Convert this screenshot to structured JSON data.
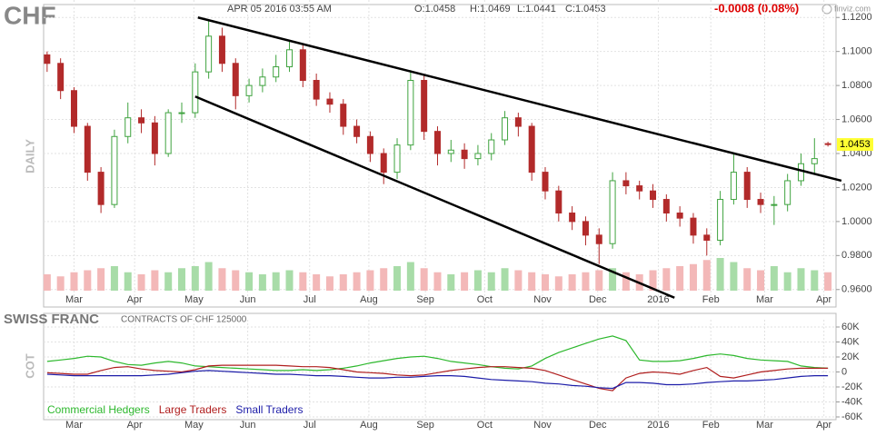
{
  "chart_data": [
    {
      "type": "candlestick",
      "title": "CHF",
      "subtitle": "APR 05 2016 03:55 AM",
      "ohlc_text": [
        "O:1.0458",
        "H:1.0469",
        "L:1.0441",
        "C:1.0453"
      ],
      "change_text": "-0.0008 (0.08%)",
      "branding": "finviz.com",
      "ylabel": "DAILY",
      "x": [
        0,
        1,
        2,
        3,
        4,
        5,
        6,
        7,
        8,
        9,
        10,
        11,
        12,
        13,
        14,
        15,
        16,
        17,
        18,
        19,
        20,
        21,
        22,
        23,
        24,
        25,
        26,
        27,
        28,
        29,
        30,
        31,
        32,
        33,
        34,
        35,
        36,
        37,
        38,
        39,
        40,
        41,
        42,
        43,
        44,
        45,
        46,
        47,
        48,
        49,
        50,
        51,
        52,
        53,
        54,
        55,
        56,
        57,
        58
      ],
      "open": [
        1.098,
        1.093,
        1.077,
        1.056,
        1.029,
        1.01,
        1.05,
        1.061,
        1.058,
        1.04,
        1.064,
        1.064,
        1.088,
        1.109,
        1.093,
        1.074,
        1.08,
        1.085,
        1.091,
        1.101,
        1.083,
        1.072,
        1.069,
        1.056,
        1.05,
        1.04,
        1.029,
        1.045,
        1.083,
        1.053,
        1.04,
        1.042,
        1.037,
        1.04,
        1.048,
        1.061,
        1.056,
        1.029,
        1.018,
        1.005,
        1.0,
        0.992,
        0.987,
        1.024,
        1.021,
        1.018,
        1.013,
        1.005,
        1.002,
        0.992,
        0.989,
        1.013,
        1.029,
        1.013,
        1.01,
        1.01,
        1.024,
        1.034,
        1.0458
      ],
      "high": [
        1.1,
        1.096,
        1.079,
        1.058,
        1.032,
        1.054,
        1.07,
        1.066,
        1.062,
        1.066,
        1.07,
        1.093,
        1.118,
        1.114,
        1.096,
        1.084,
        1.09,
        1.098,
        1.106,
        1.104,
        1.087,
        1.076,
        1.072,
        1.06,
        1.053,
        1.043,
        1.049,
        1.089,
        1.086,
        1.056,
        1.048,
        1.046,
        1.045,
        1.052,
        1.065,
        1.064,
        1.058,
        1.032,
        1.021,
        1.009,
        1.003,
        0.996,
        1.029,
        1.029,
        1.024,
        1.022,
        1.016,
        1.009,
        1.005,
        0.996,
        1.018,
        1.04,
        1.032,
        1.017,
        1.015,
        1.028,
        1.04,
        1.049,
        1.0469
      ],
      "low": [
        1.088,
        1.072,
        1.052,
        1.024,
        1.005,
        1.008,
        1.046,
        1.052,
        1.033,
        1.038,
        1.058,
        1.061,
        1.084,
        1.088,
        1.066,
        1.07,
        1.076,
        1.082,
        1.088,
        1.079,
        1.068,
        1.064,
        1.051,
        1.046,
        1.035,
        1.022,
        1.025,
        1.042,
        1.048,
        1.033,
        1.035,
        1.031,
        1.033,
        1.036,
        1.045,
        1.05,
        1.024,
        1.013,
        1.0,
        0.995,
        0.986,
        0.975,
        0.984,
        1.016,
        1.013,
        1.008,
        1.0,
        0.997,
        0.987,
        0.98,
        0.986,
        1.01,
        1.008,
        1.005,
        0.998,
        1.006,
        1.021,
        1.028,
        1.0441
      ],
      "close": [
        1.093,
        1.077,
        1.056,
        1.029,
        1.01,
        1.05,
        1.061,
        1.058,
        1.04,
        1.064,
        1.064,
        1.088,
        1.109,
        1.093,
        1.074,
        1.08,
        1.085,
        1.091,
        1.101,
        1.083,
        1.072,
        1.069,
        1.056,
        1.05,
        1.04,
        1.029,
        1.045,
        1.083,
        1.053,
        1.04,
        1.042,
        1.037,
        1.04,
        1.048,
        1.061,
        1.056,
        1.029,
        1.018,
        1.005,
        1.0,
        0.992,
        0.987,
        1.024,
        1.021,
        1.018,
        1.013,
        1.005,
        1.002,
        0.992,
        0.989,
        1.013,
        1.029,
        1.013,
        1.01,
        1.01,
        1.024,
        1.034,
        1.037,
        1.0453
      ],
      "volume": [
        40,
        35,
        45,
        50,
        55,
        60,
        45,
        40,
        50,
        45,
        55,
        60,
        70,
        55,
        50,
        45,
        40,
        45,
        50,
        45,
        40,
        35,
        40,
        45,
        50,
        55,
        60,
        70,
        55,
        45,
        40,
        45,
        50,
        45,
        55,
        50,
        45,
        40,
        35,
        40,
        45,
        50,
        55,
        45,
        40,
        50,
        55,
        60,
        65,
        75,
        80,
        70,
        55,
        50,
        60,
        45,
        55,
        50,
        45
      ],
      "up_color": "#3fa33f",
      "down_color": "#b22a2a",
      "up_volume_color": "#a8dca8",
      "down_volume_color": "#f3b8b8",
      "trendlines": [
        {
          "x": [
            11.2,
            59.0
          ],
          "y": [
            1.12,
            1.024
          ]
        },
        {
          "x": [
            11.0,
            46.6
          ],
          "y": [
            1.0735,
            0.9552
          ]
        }
      ],
      "trendline_color": "#000000",
      "xlim": [
        -0.8,
        58.6
      ],
      "xticks": [
        {
          "value": 2,
          "label": "Mar"
        },
        {
          "value": 6.5,
          "label": "Apr"
        },
        {
          "value": 10.9,
          "label": "May"
        },
        {
          "value": 14.9,
          "label": "Jun"
        },
        {
          "value": 19.5,
          "label": "Jul"
        },
        {
          "value": 23.9,
          "label": "Aug"
        },
        {
          "value": 28.1,
          "label": "Sep"
        },
        {
          "value": 32.5,
          "label": "Oct"
        },
        {
          "value": 36.8,
          "label": "Nov"
        },
        {
          "value": 40.9,
          "label": "Dec"
        },
        {
          "value": 45.4,
          "label": "2016"
        },
        {
          "value": 49.3,
          "label": "Feb"
        },
        {
          "value": 53.3,
          "label": "Mar"
        },
        {
          "value": 57.7,
          "label": "Apr"
        }
      ],
      "ylim": [
        0.954,
        1.126
      ],
      "yticks": [
        {
          "value": 0.96,
          "label": "0.9600"
        },
        {
          "value": 0.98,
          "label": "0.9800"
        },
        {
          "value": 1.0,
          "label": "1.0000"
        },
        {
          "value": 1.02,
          "label": "1.0200"
        },
        {
          "value": 1.04,
          "label": "1.0400"
        },
        {
          "value": 1.06,
          "label": "1.0600"
        },
        {
          "value": 1.08,
          "label": "1.0800"
        },
        {
          "value": 1.1,
          "label": "1.1000"
        },
        {
          "value": 1.12,
          "label": "1.1200"
        }
      ],
      "grid": true
    },
    {
      "type": "line",
      "title": "SWISS FRANC",
      "subtitle": "CONTRACTS OF CHF 125000",
      "ylabel": "COT",
      "x": [
        0,
        1,
        2,
        3,
        4,
        5,
        6,
        7,
        8,
        9,
        10,
        11,
        12,
        13,
        14,
        15,
        16,
        17,
        18,
        19,
        20,
        21,
        22,
        23,
        24,
        25,
        26,
        27,
        28,
        29,
        30,
        31,
        32,
        33,
        34,
        35,
        36,
        37,
        38,
        39,
        40,
        41,
        42,
        43,
        44,
        45,
        46,
        47,
        48,
        49,
        50,
        51,
        52,
        53,
        54,
        55,
        56,
        57,
        58
      ],
      "series": [
        {
          "name": "Commercial Hedgers",
          "color": "#2db82d",
          "values": [
            14000,
            16000,
            18000,
            21000,
            20000,
            14000,
            10000,
            9000,
            12000,
            14000,
            12000,
            8000,
            7000,
            6000,
            5000,
            4000,
            3000,
            2000,
            2000,
            3000,
            2000,
            3000,
            5000,
            8000,
            12000,
            15000,
            18000,
            20000,
            21000,
            18000,
            14000,
            12000,
            10000,
            7000,
            5000,
            4000,
            8000,
            18000,
            26000,
            32000,
            38000,
            44000,
            48000,
            42000,
            16000,
            14000,
            14000,
            15000,
            18000,
            22000,
            24000,
            22000,
            18000,
            16000,
            15000,
            14000,
            8000,
            6000,
            5000
          ]
        },
        {
          "name": "Large Traders",
          "color": "#b01e1e",
          "values": [
            -1000,
            -2000,
            -3000,
            -3000,
            2000,
            6000,
            7000,
            4000,
            2000,
            1000,
            0,
            3000,
            8000,
            9000,
            9000,
            9000,
            9000,
            9000,
            8000,
            7000,
            7000,
            6000,
            3000,
            0,
            -1000,
            -2000,
            -4000,
            -5000,
            -4000,
            -1000,
            2000,
            4000,
            6000,
            7000,
            7000,
            6000,
            5000,
            2000,
            -4000,
            -10000,
            -16000,
            -22000,
            -25000,
            -8000,
            -2000,
            0,
            -1000,
            -3000,
            2000,
            6000,
            -6000,
            -8000,
            -4000,
            0,
            2000,
            4000,
            5000,
            5000,
            5000
          ]
        },
        {
          "name": "Small Traders",
          "color": "#1c1ca8",
          "values": [
            -3000,
            -4000,
            -5000,
            -5000,
            -5000,
            -5000,
            -5000,
            -5000,
            -4000,
            -3000,
            -1000,
            1000,
            2000,
            1000,
            0,
            -1000,
            -2000,
            -3000,
            -3000,
            -4000,
            -5000,
            -5000,
            -6000,
            -7000,
            -8000,
            -8000,
            -7000,
            -7000,
            -6000,
            -5000,
            -5000,
            -6000,
            -8000,
            -10000,
            -11000,
            -12000,
            -13000,
            -15000,
            -16000,
            -18000,
            -19000,
            -21000,
            -22000,
            -14000,
            -14000,
            -15000,
            -17000,
            -17000,
            -16000,
            -14000,
            -13000,
            -12000,
            -12000,
            -11000,
            -10000,
            -8000,
            -6000,
            -5000,
            -5000
          ]
        }
      ],
      "xlim": [
        -0.8,
        58.6
      ],
      "xticks": [
        {
          "value": 2,
          "label": "Mar"
        },
        {
          "value": 6.5,
          "label": "Apr"
        },
        {
          "value": 10.9,
          "label": "May"
        },
        {
          "value": 14.9,
          "label": "Jun"
        },
        {
          "value": 19.5,
          "label": "Jul"
        },
        {
          "value": 23.9,
          "label": "Aug"
        },
        {
          "value": 28.1,
          "label": "Sep"
        },
        {
          "value": 32.5,
          "label": "Oct"
        },
        {
          "value": 36.8,
          "label": "Nov"
        },
        {
          "value": 40.9,
          "label": "Dec"
        },
        {
          "value": 45.4,
          "label": "2016"
        },
        {
          "value": 49.3,
          "label": "Feb"
        },
        {
          "value": 53.3,
          "label": "Mar"
        },
        {
          "value": 57.7,
          "label": "Apr"
        }
      ],
      "ylim": [
        -60000,
        60000
      ],
      "yticks": [
        {
          "value": -60000,
          "label": "-60K"
        },
        {
          "value": -40000,
          "label": "-40K"
        },
        {
          "value": -20000,
          "label": "-20K"
        },
        0,
        {
          "value": 20000,
          "label": "20K"
        },
        {
          "value": 40000,
          "label": "40K"
        },
        {
          "value": 60000,
          "label": "60K"
        }
      ],
      "grid": true
    }
  ]
}
